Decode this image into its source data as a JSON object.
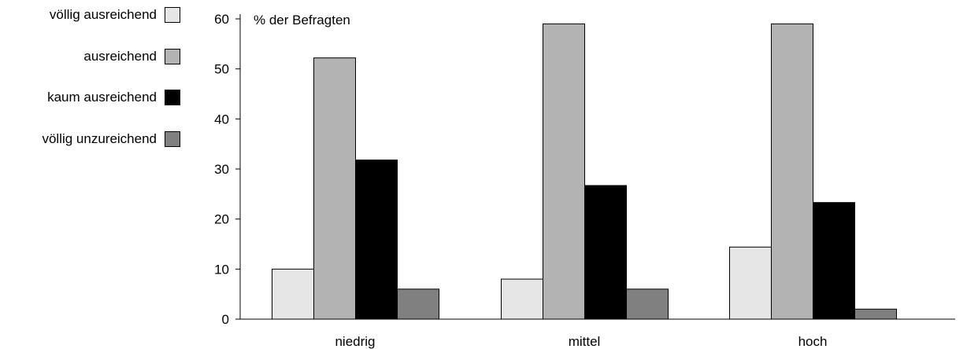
{
  "chart_data": {
    "type": "bar",
    "title": "",
    "ylabel": "% der Befragten",
    "xlabel": "",
    "categories": [
      "niedrig",
      "mittel",
      "hoch"
    ],
    "ylim": [
      0,
      60
    ],
    "yticks": [
      0,
      10,
      20,
      30,
      40,
      50,
      60
    ],
    "grid": false,
    "legend_position": "left",
    "series": [
      {
        "name": "völlig ausreichend",
        "color": "#e6e6e6",
        "values": [
          10,
          8,
          14.4
        ]
      },
      {
        "name": "ausreichend",
        "color": "#b3b3b3",
        "values": [
          52.2,
          59,
          59
        ]
      },
      {
        "name": "kaum ausreichend",
        "color": "#000000",
        "values": [
          31.8,
          26.7,
          23.3
        ]
      },
      {
        "name": "völlig unzureichend",
        "color": "#808080",
        "values": [
          6,
          6,
          2
        ]
      }
    ]
  }
}
